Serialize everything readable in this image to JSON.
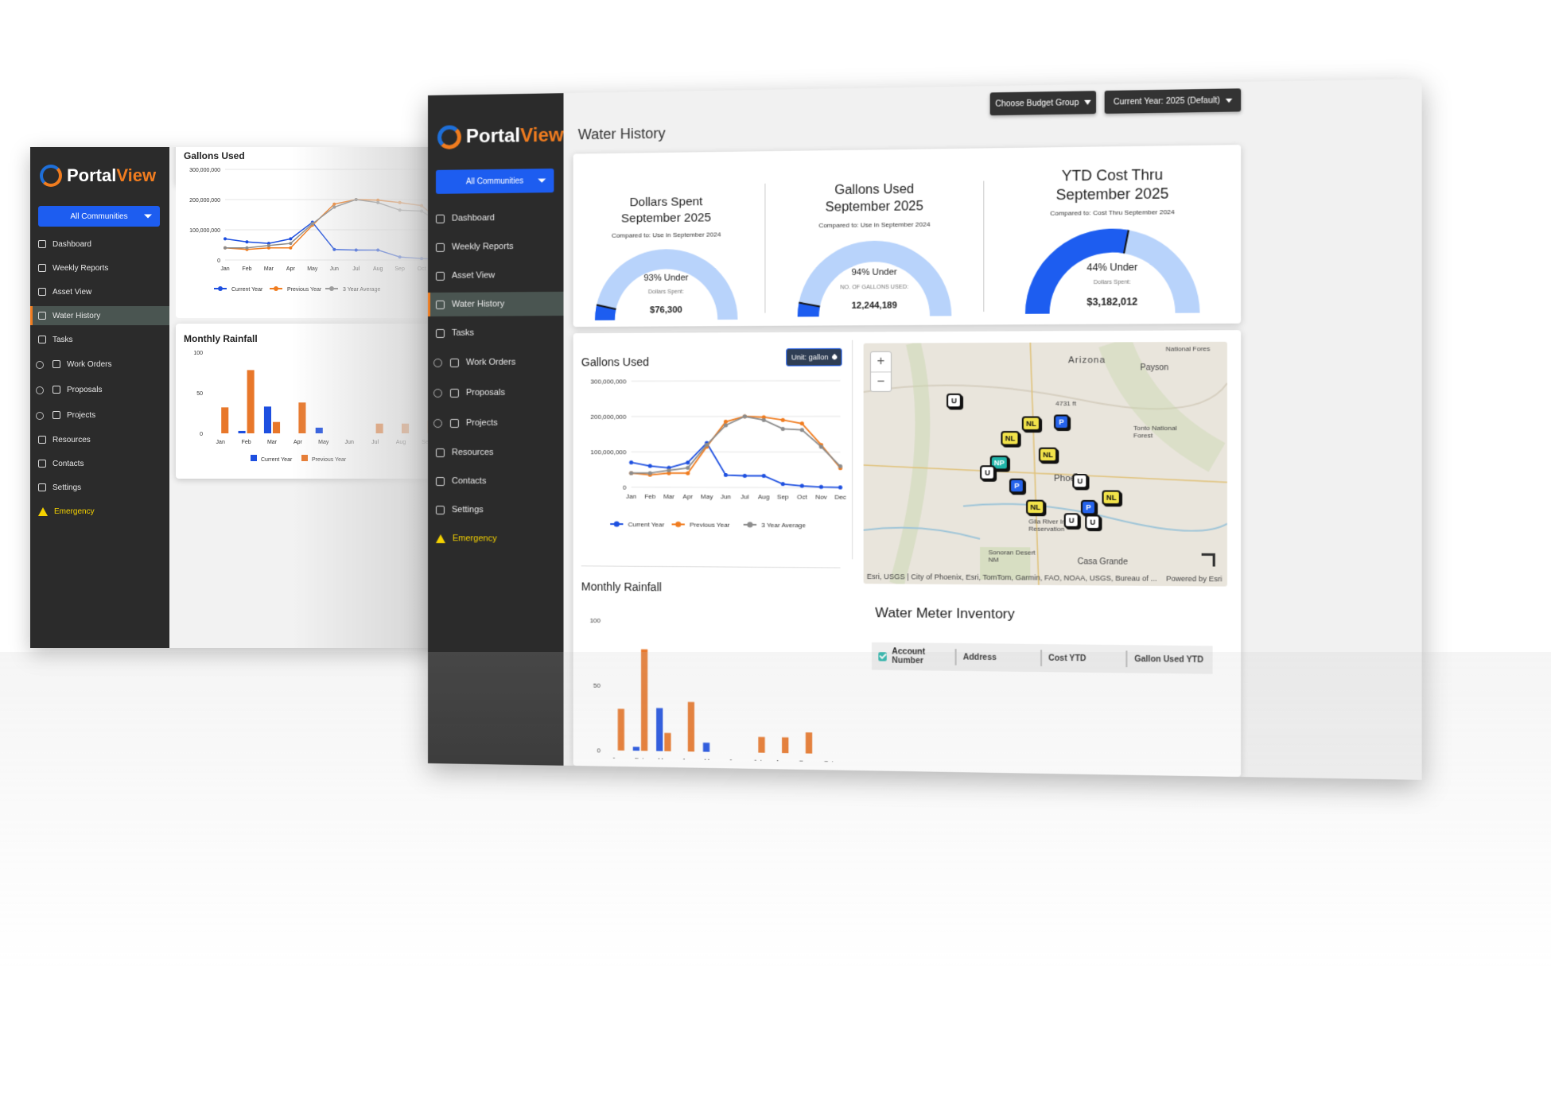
{
  "app": {
    "logo_portal": "Portal",
    "logo_view": "View"
  },
  "community_selector": {
    "label": "All Communities"
  },
  "nav": {
    "items": [
      {
        "label": "Dashboard",
        "icon": "home-icon"
      },
      {
        "label": "Weekly Reports",
        "icon": "report-icon"
      },
      {
        "label": "Asset View",
        "icon": "map-icon"
      },
      {
        "label": "Water History",
        "icon": "droplet-icon",
        "active": true
      },
      {
        "label": "Tasks",
        "icon": "grid-icon"
      },
      {
        "label": "Work Orders",
        "icon": "clock-icon",
        "sub": true
      },
      {
        "label": "Proposals",
        "icon": "copy-icon",
        "sub": true
      },
      {
        "label": "Projects",
        "icon": "clipboard-icon",
        "sub": true
      },
      {
        "label": "Resources",
        "icon": "file-icon"
      },
      {
        "label": "Contacts",
        "icon": "contacts-icon"
      },
      {
        "label": "Settings",
        "icon": "gear-icon"
      },
      {
        "label": "Emergency",
        "icon": "warning-icon",
        "emergency": true
      }
    ]
  },
  "header": {
    "budget_button": "Choose Budget Group",
    "year_button": "Current Year: 2025 (Default)",
    "page_title": "Water History"
  },
  "kpis": [
    {
      "title": "Dollars Spent September 2025",
      "compare": "Compared to: Use in September 2024",
      "pct_label": "93% Under",
      "sub_label": "Dollars Spent:",
      "value": "$76,300",
      "fill_fraction": 0.07
    },
    {
      "title": "Gallons Used September 2025",
      "compare": "Compared to: Use in September 2024",
      "pct_label": "94% Under",
      "sub_label": "NO. OF GALLONS USED:",
      "value": "12,244,189",
      "fill_fraction": 0.06
    },
    {
      "title": "YTD Cost Thru September 2025",
      "compare": "Compared to: Cost Thru September 2024",
      "pct_label": "44% Under",
      "sub_label": "Dollars Spent:",
      "value": "$3,182,012",
      "fill_fraction": 0.56
    }
  ],
  "gallons_card": {
    "title": "Gallons Used",
    "unit_button": "Unit: gallon"
  },
  "rainfall_card": {
    "title": "Monthly Rainfall"
  },
  "chart_data": [
    {
      "type": "line",
      "title": "Gallons Used",
      "categories": [
        "Jan",
        "Feb",
        "Mar",
        "Apr",
        "May",
        "Jun",
        "Jul",
        "Aug",
        "Sep",
        "Oct",
        "Nov",
        "Dec"
      ],
      "series": [
        {
          "name": "Current Year",
          "values": [
            70000000,
            60000000,
            55000000,
            70000000,
            125000000,
            35000000,
            33000000,
            33000000,
            10000000,
            5000000,
            2000000,
            1000000
          ]
        },
        {
          "name": "Previous Year",
          "values": [
            40000000,
            35000000,
            40000000,
            40000000,
            115000000,
            185000000,
            200000000,
            198000000,
            190000000,
            180000000,
            120000000,
            55000000
          ]
        },
        {
          "name": "3 Year Average",
          "values": [
            40000000,
            40000000,
            48000000,
            55000000,
            120000000,
            175000000,
            200000000,
            190000000,
            165000000,
            162000000,
            115000000,
            60000000
          ]
        }
      ],
      "yticks": [
        "0",
        "100,000,000",
        "200,000,000",
        "300,000,000"
      ],
      "ylim": [
        0,
        300000000
      ],
      "colors": [
        "#1d4fe0",
        "#f07c1f",
        "#8c8c8c"
      ]
    },
    {
      "type": "bar",
      "title": "Monthly Rainfall",
      "categories": [
        "Jan",
        "Feb",
        "Mar",
        "Apr",
        "May",
        "Jun",
        "Jul",
        "Aug",
        "Sep",
        "Oct"
      ],
      "series": [
        {
          "name": "Current Year",
          "values": [
            0,
            3,
            33,
            0,
            7,
            0,
            0,
            0,
            0,
            0
          ]
        },
        {
          "name": "Previous Year",
          "values": [
            32,
            78,
            14,
            38,
            0,
            0,
            12,
            12,
            16,
            0
          ]
        }
      ],
      "yticks": [
        "0",
        "50",
        "100"
      ],
      "ylim": [
        0,
        100
      ],
      "colors": [
        "#1d4fe0",
        "#e8772a"
      ]
    }
  ],
  "map": {
    "labels": {
      "arizona": "Arizona",
      "payson": "Payson",
      "tonto": "Tonto National Forest",
      "phoenix": "Phoenix",
      "gila": "Gila River Indian Reservation",
      "sonoran": "Sonoran Desert NM",
      "casa_grande": "Casa Grande",
      "national_forest": "National Fores",
      "peak": "4731 ft"
    },
    "attribution": "Esri, USGS | City of Phoenix, Esri, TomTom, Garmin, FAO, NOAA, USGS, Bureau of ...",
    "powered": "Powered by Esri",
    "markers": [
      {
        "t": "U",
        "c": "white"
      },
      {
        "t": "NL",
        "c": "yellow"
      },
      {
        "t": "P",
        "c": "blue"
      },
      {
        "t": "NL",
        "c": "yellow"
      },
      {
        "t": "NL",
        "c": "yellow"
      },
      {
        "t": "NP",
        "c": "teal"
      },
      {
        "t": "U",
        "c": "white"
      },
      {
        "t": "P",
        "c": "blue"
      },
      {
        "t": "U",
        "c": "white"
      },
      {
        "t": "NL",
        "c": "yellow"
      },
      {
        "t": "P",
        "c": "blue"
      },
      {
        "t": "NL",
        "c": "yellow"
      },
      {
        "t": "U",
        "c": "white"
      },
      {
        "t": "U",
        "c": "white"
      }
    ]
  },
  "inventory": {
    "title": "Water Meter Inventory",
    "columns": [
      "Account Number",
      "Address",
      "Cost YTD",
      "Gallon Used YTD"
    ]
  }
}
